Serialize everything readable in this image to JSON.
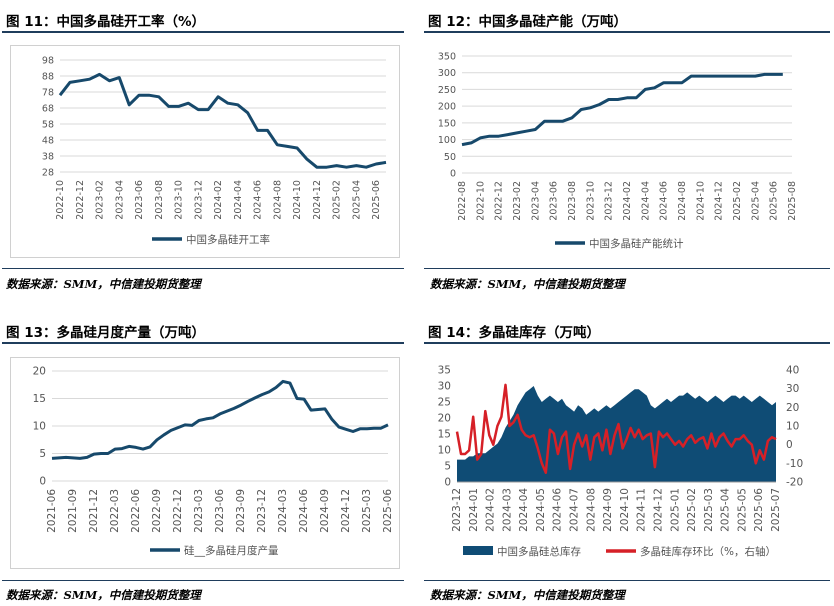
{
  "charts": [
    {
      "title": "图 11：中国多晶硅开工率（%）",
      "source": "数据来源：SMM，中信建投期货整理",
      "chart_data": {
        "type": "line",
        "title": "",
        "xlabel": "",
        "ylabel": "",
        "ylim": [
          28,
          98
        ],
        "yticks": [
          "98",
          "88",
          "78",
          "68",
          "58",
          "48",
          "38",
          "28"
        ],
        "xticks": [
          "2022-10",
          "2022-12",
          "2023-02",
          "2023-04",
          "2023-06",
          "2023-08",
          "2023-10",
          "2023-12",
          "2024-02",
          "2024-04",
          "2024-06",
          "2024-08",
          "2024-10",
          "2024-12",
          "2025-02",
          "2025-04",
          "2025-06"
        ],
        "grid": true,
        "legend": "bottom",
        "series": [
          {
            "name": "中国多晶硅开工率",
            "color": "#17496b",
            "x": [
              "2022-10",
              "2022-11",
              "2022-12",
              "2023-01",
              "2023-02",
              "2023-03",
              "2023-04",
              "2023-05",
              "2023-06",
              "2023-07",
              "2023-08",
              "2023-09",
              "2023-10",
              "2023-11",
              "2023-12",
              "2024-01",
              "2024-02",
              "2024-03",
              "2024-04",
              "2024-05",
              "2024-06",
              "2024-07",
              "2024-08",
              "2024-09",
              "2024-10",
              "2024-11",
              "2024-12",
              "2025-01",
              "2025-02",
              "2025-03",
              "2025-04",
              "2025-05",
              "2025-06",
              "2025-07"
            ],
            "values": [
              76,
              84,
              85,
              86,
              89,
              85,
              87,
              70,
              76,
              76,
              75,
              69,
              69,
              71,
              67,
              67,
              75,
              71,
              70,
              65,
              54,
              54,
              45,
              44,
              43,
              36,
              31,
              31,
              32,
              31,
              32,
              31,
              33,
              34
            ]
          }
        ]
      }
    },
    {
      "title": "图 12：中国多晶硅产能（万吨）",
      "source": "数据来源：SMM，中信建投期货整理",
      "chart_data": {
        "type": "line",
        "title": "",
        "xlabel": "",
        "ylabel": "",
        "ylim": [
          0,
          350
        ],
        "yticks": [
          "350",
          "300",
          "250",
          "200",
          "150",
          "100",
          "50",
          "0"
        ],
        "xticks": [
          "2022-08",
          "2022-10",
          "2022-12",
          "2023-02",
          "2023-04",
          "2023-06",
          "2023-08",
          "2023-10",
          "2023-12",
          "2024-02",
          "2024-04",
          "2024-06",
          "2024-08",
          "2024-10",
          "2024-12",
          "2025-02",
          "2025-04",
          "2025-06",
          "2025-08"
        ],
        "grid": true,
        "legend": "bottom",
        "series": [
          {
            "name": "中国多晶硅产能统计",
            "color": "#17496b",
            "x": [
              "2022-08",
              "2022-09",
              "2022-10",
              "2022-11",
              "2022-12",
              "2023-01",
              "2023-02",
              "2023-03",
              "2023-04",
              "2023-05",
              "2023-06",
              "2023-07",
              "2023-08",
              "2023-09",
              "2023-10",
              "2023-11",
              "2023-12",
              "2024-01",
              "2024-02",
              "2024-03",
              "2024-04",
              "2024-05",
              "2024-06",
              "2024-07",
              "2024-08",
              "2024-09",
              "2024-10",
              "2024-11",
              "2024-12",
              "2025-01",
              "2025-02",
              "2025-03",
              "2025-04",
              "2025-05",
              "2025-06",
              "2025-07"
            ],
            "values": [
              85,
              90,
              105,
              110,
              110,
              115,
              120,
              125,
              130,
              155,
              155,
              155,
              165,
              190,
              195,
              205,
              220,
              220,
              225,
              225,
              250,
              255,
              270,
              270,
              270,
              290,
              290,
              290,
              290,
              290,
              290,
              290,
              290,
              295,
              295,
              295
            ]
          }
        ]
      }
    },
    {
      "title": "图 13：多晶硅月度产量（万吨）",
      "source": "数据来源：SMM，中信建投期货整理",
      "chart_data": {
        "type": "line",
        "title": "",
        "xlabel": "",
        "ylabel": "",
        "ylim": [
          0,
          20
        ],
        "yticks": [
          "20",
          "15",
          "10",
          "5",
          "0"
        ],
        "xticks": [
          "2021-06",
          "2021-09",
          "2021-12",
          "2022-03",
          "2022-06",
          "2022-09",
          "2022-12",
          "2023-03",
          "2023-06",
          "2023-09",
          "2023-12",
          "2024-03",
          "2024-06",
          "2024-09",
          "2024-12",
          "2025-03",
          "2025-06"
        ],
        "grid": true,
        "legend": "bottom",
        "series": [
          {
            "name": "硅__多晶硅月度产量",
            "color": "#17496b",
            "x": [
              "2021-06",
              "2021-07",
              "2021-08",
              "2021-09",
              "2021-10",
              "2021-11",
              "2021-12",
              "2022-01",
              "2022-02",
              "2022-03",
              "2022-04",
              "2022-05",
              "2022-06",
              "2022-07",
              "2022-08",
              "2022-09",
              "2022-10",
              "2022-11",
              "2022-12",
              "2023-01",
              "2023-02",
              "2023-03",
              "2023-04",
              "2023-05",
              "2023-06",
              "2023-07",
              "2023-08",
              "2023-09",
              "2023-10",
              "2023-11",
              "2023-12",
              "2024-01",
              "2024-02",
              "2024-03",
              "2024-04",
              "2024-05",
              "2024-06",
              "2024-07",
              "2024-08",
              "2024-09",
              "2024-10",
              "2024-11",
              "2024-12",
              "2025-01",
              "2025-02",
              "2025-03",
              "2025-04",
              "2025-05",
              "2025-06"
            ],
            "values": [
              4.1,
              4.2,
              4.3,
              4.2,
              4.1,
              4.3,
              4.9,
              5.0,
              5.0,
              5.8,
              5.9,
              6.3,
              6.1,
              5.8,
              6.2,
              7.5,
              8.4,
              9.2,
              9.7,
              10.2,
              10.1,
              11.0,
              11.3,
              11.5,
              12.2,
              12.7,
              13.2,
              13.8,
              14.5,
              15.1,
              15.7,
              16.2,
              17.0,
              18.1,
              17.8,
              15.0,
              14.9,
              12.9,
              13.0,
              13.1,
              11.2,
              9.8,
              9.4,
              9.0,
              9.5,
              9.5,
              9.6,
              9.6,
              10.2
            ]
          }
        ]
      }
    },
    {
      "title": "图 14：多晶硅库存（万吨）",
      "source": "数据来源：SMM，中信建投期货整理",
      "chart_data": {
        "type": "area",
        "title": "",
        "xlabel": "",
        "ylabel": "",
        "ylim": [
          0,
          35
        ],
        "ylim_right": [
          -20,
          40
        ],
        "yticks": [
          "35",
          "30",
          "25",
          "20",
          "15",
          "10",
          "5",
          "0"
        ],
        "yticks_right": [
          "40",
          "30",
          "20",
          "10",
          "0",
          "-10",
          "-20"
        ],
        "xticks": [
          "2023-12",
          "2024-01",
          "2024-02",
          "2024-03",
          "2024-04",
          "2024-05",
          "2024-06",
          "2024-07",
          "2024-08",
          "2024-09",
          "2024-10",
          "2024-11",
          "2024-12",
          "2025-01",
          "2025-02",
          "2025-03",
          "2025-04",
          "2025-05",
          "2025-06",
          "2025-07"
        ],
        "grid": false,
        "legend": "bottom",
        "series": [
          {
            "name": "中国多晶硅总库存",
            "type": "area",
            "axis": "left",
            "color": "#0f4c75",
            "values": [
              7,
              7,
              7,
              8,
              8,
              9,
              9,
              9,
              10,
              11,
              12,
              14,
              17,
              19,
              21,
              24,
              26,
              28,
              29,
              30,
              27,
              25,
              26,
              27,
              26,
              25,
              26,
              24,
              23,
              22,
              24,
              23,
              21,
              22,
              23,
              22,
              23,
              24,
              23,
              24,
              25,
              26,
              27,
              28,
              29,
              29,
              28,
              27,
              24,
              23,
              24,
              25,
              26,
              25,
              26,
              27,
              27,
              28,
              27,
              26,
              27,
              26,
              25,
              26,
              27,
              26,
              25,
              26,
              27,
              27,
              26,
              27,
              26,
              25,
              26,
              27,
              26,
              25,
              24,
              25
            ]
          },
          {
            "name": "多晶硅库存环比（%，右轴）",
            "type": "line",
            "axis": "right",
            "color": "#d62027",
            "values": [
              7,
              -5,
              -5,
              -3,
              15,
              -8,
              -5,
              18,
              5,
              0,
              10,
              15,
              32,
              10,
              12,
              16,
              8,
              5,
              4,
              5,
              -2,
              -10,
              -15,
              8,
              6,
              -5,
              4,
              7,
              -13,
              0,
              6,
              -1,
              5,
              -8,
              4,
              6,
              -3,
              8,
              -5,
              5,
              11,
              -2,
              3,
              9,
              4,
              8,
              3,
              5,
              6,
              -12,
              7,
              4,
              6,
              3,
              0,
              2,
              -1,
              3,
              5,
              1,
              3,
              4,
              -2,
              6,
              -1,
              4,
              6,
              2,
              -1,
              3,
              3,
              5,
              2,
              0,
              -10,
              -3,
              -8,
              2,
              4,
              3
            ]
          }
        ]
      }
    }
  ]
}
